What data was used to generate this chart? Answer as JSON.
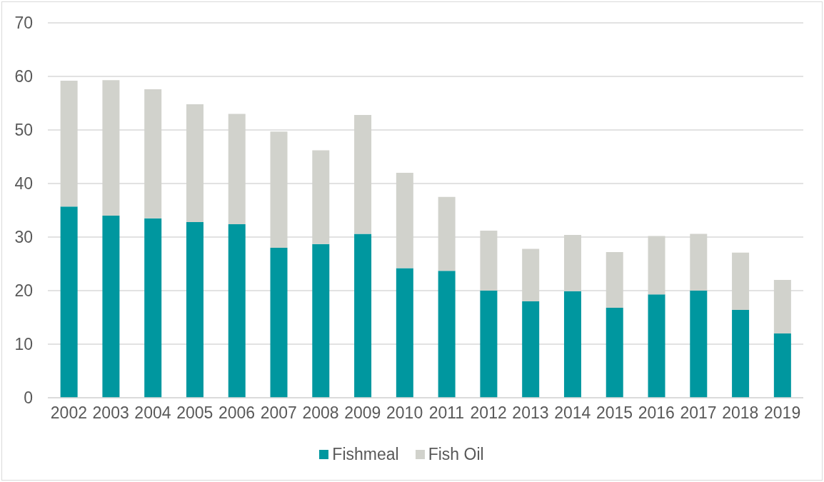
{
  "chart_data": {
    "type": "bar",
    "stacked": true,
    "categories": [
      "2002",
      "2003",
      "2004",
      "2005",
      "2006",
      "2007",
      "2008",
      "2009",
      "2010",
      "2011",
      "2012",
      "2013",
      "2014",
      "2015",
      "2016",
      "2017",
      "2018",
      "2019"
    ],
    "series": [
      {
        "name": "Fishmeal",
        "color": "#00979f",
        "values": [
          35.7,
          34.0,
          33.5,
          32.8,
          32.4,
          28.0,
          28.7,
          30.6,
          24.2,
          23.7,
          20.0,
          18.0,
          19.9,
          16.8,
          19.3,
          20.0,
          16.4,
          12.0
        ]
      },
      {
        "name": "Fish Oil",
        "color": "#d1d2cc",
        "values": [
          23.5,
          25.3,
          24.1,
          22.0,
          20.6,
          21.7,
          17.5,
          22.2,
          17.8,
          13.8,
          11.2,
          9.8,
          10.5,
          10.4,
          10.9,
          10.6,
          10.7,
          10.0
        ]
      }
    ],
    "ylim": [
      0,
      70
    ],
    "yticks": [
      0,
      10,
      20,
      30,
      40,
      50,
      60,
      70
    ],
    "grid": "y",
    "legend": "bottom"
  }
}
